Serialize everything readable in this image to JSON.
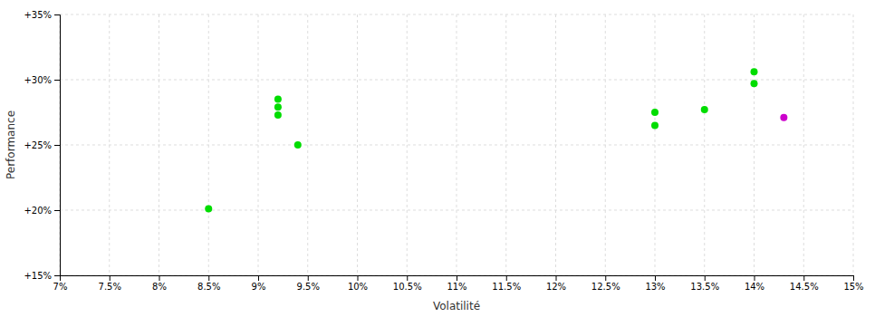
{
  "chart_data": {
    "type": "scatter",
    "xlabel": "Volatilité",
    "ylabel": "Performance",
    "xlim": [
      0.07,
      0.15
    ],
    "ylim": [
      0.15,
      0.35
    ],
    "xticks": [
      {
        "value": 0.07,
        "label": "7%"
      },
      {
        "value": 0.075,
        "label": "7.5%"
      },
      {
        "value": 0.08,
        "label": "8%"
      },
      {
        "value": 0.085,
        "label": "8.5%"
      },
      {
        "value": 0.09,
        "label": "9%"
      },
      {
        "value": 0.095,
        "label": "9.5%"
      },
      {
        "value": 0.1,
        "label": "10%"
      },
      {
        "value": 0.105,
        "label": "10.5%"
      },
      {
        "value": 0.11,
        "label": "11%"
      },
      {
        "value": 0.115,
        "label": "11.5%"
      },
      {
        "value": 0.12,
        "label": "12%"
      },
      {
        "value": 0.125,
        "label": "12.5%"
      },
      {
        "value": 0.13,
        "label": "13%"
      },
      {
        "value": 0.135,
        "label": "13.5%"
      },
      {
        "value": 0.14,
        "label": "14%"
      },
      {
        "value": 0.145,
        "label": "14.5%"
      },
      {
        "value": 0.15,
        "label": "15%"
      }
    ],
    "yticks": [
      {
        "value": 0.15,
        "label": "+15%"
      },
      {
        "value": 0.2,
        "label": "+20%"
      },
      {
        "value": 0.25,
        "label": "+25%"
      },
      {
        "value": 0.3,
        "label": "+30%"
      },
      {
        "value": 0.35,
        "label": "+35%"
      }
    ],
    "grid": true,
    "series": [
      {
        "color": "#00dd00",
        "x": [
          0.085,
          0.092,
          0.092,
          0.092,
          0.094,
          0.13,
          0.13,
          0.135,
          0.14,
          0.14
        ],
        "values": [
          0.201,
          0.285,
          0.279,
          0.273,
          0.25,
          0.275,
          0.265,
          0.277,
          0.306,
          0.297
        ]
      },
      {
        "color": "#cc00cc",
        "x": [
          0.143
        ],
        "values": [
          0.271
        ]
      }
    ]
  }
}
